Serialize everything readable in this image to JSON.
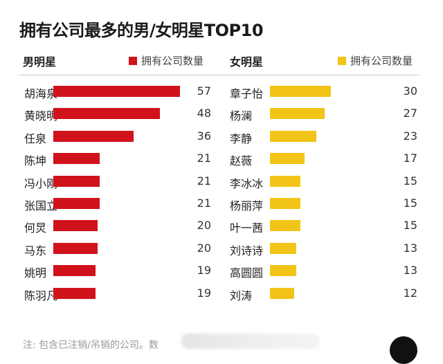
{
  "chart_data": [
    {
      "type": "bar",
      "orientation": "horizontal",
      "title": "拥有公司最多的男/女明星TOP10",
      "group_label": "男明星",
      "legend": "拥有公司数量",
      "color": "#d0121b",
      "categories": [
        "胡海泉",
        "黄晓明",
        "任泉",
        "陈坤",
        "冯小刚",
        "张国立",
        "何炅",
        "马东",
        "姚明",
        "陈羽凡"
      ],
      "values": [
        57,
        48,
        36,
        21,
        21,
        21,
        20,
        20,
        19,
        19
      ]
    },
    {
      "type": "bar",
      "orientation": "horizontal",
      "group_label": "女明星",
      "legend": "拥有公司数量",
      "color": "#f2c417",
      "categories": [
        "章子怡",
        "杨澜",
        "李静",
        "赵薇",
        "李冰冰",
        "杨丽萍",
        "叶一茜",
        "刘诗诗",
        "高圆圆",
        "刘涛"
      ],
      "values": [
        30,
        27,
        23,
        17,
        15,
        15,
        15,
        13,
        13,
        12
      ]
    }
  ],
  "title": "拥有公司最多的男/女明星TOP10",
  "note": "注: 包含已注销/吊销的公司。数"
}
